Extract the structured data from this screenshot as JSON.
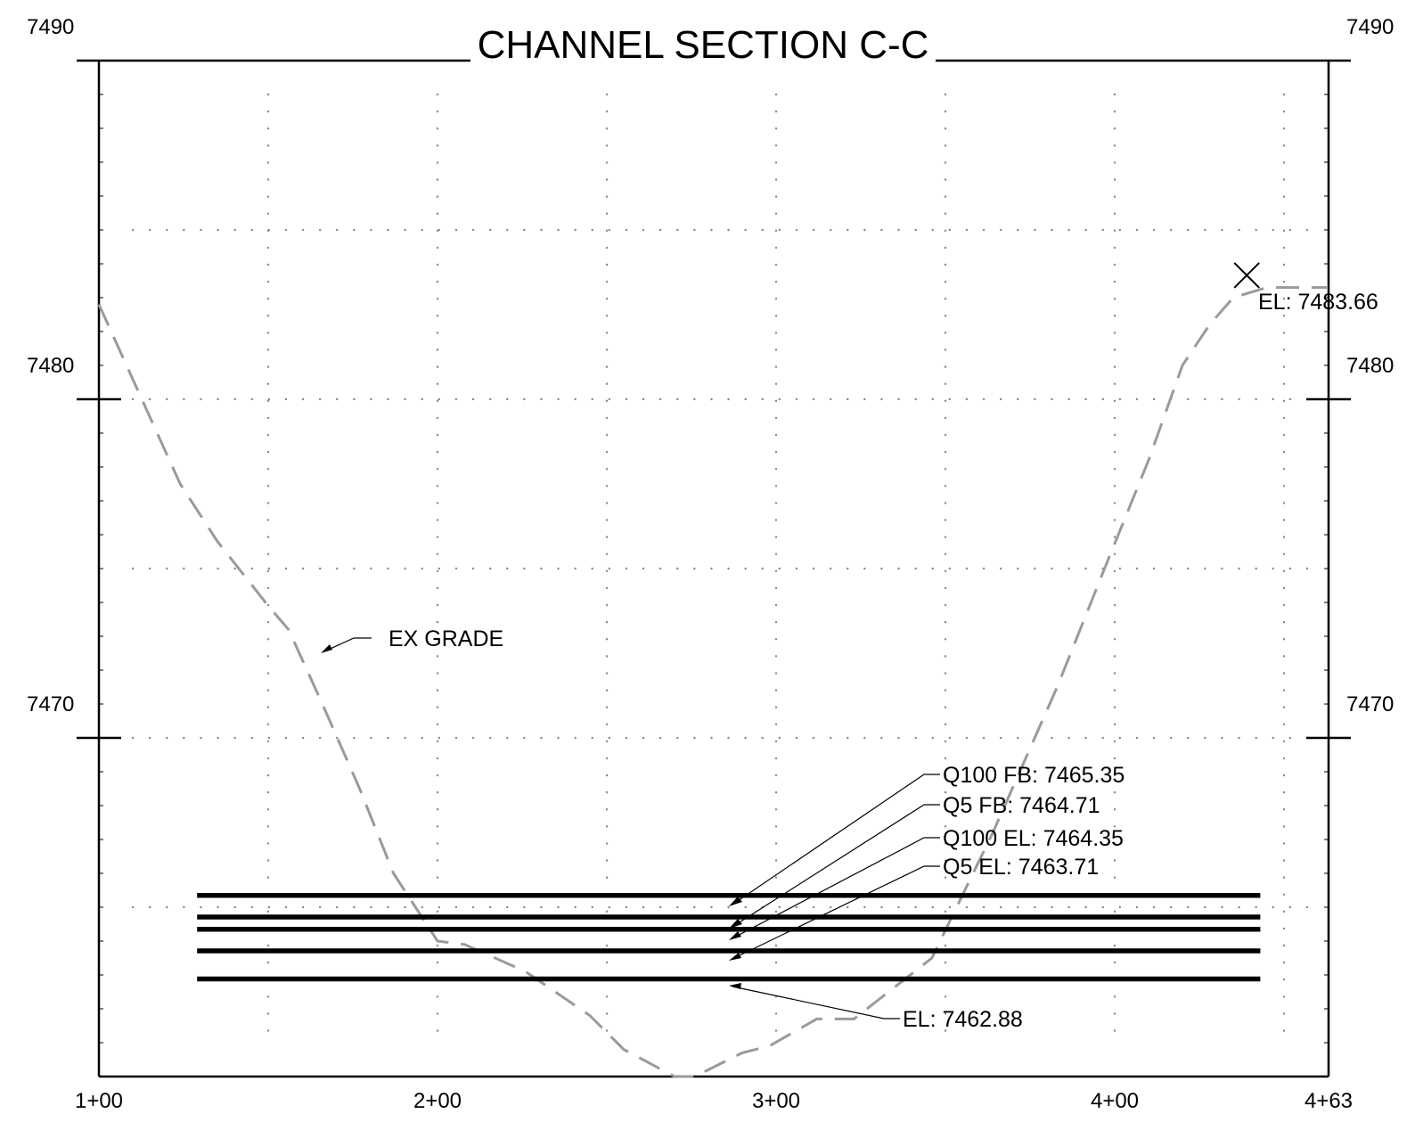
{
  "title": "CHANNEL SECTION C-C",
  "elevation_labels": {
    "top_left": "7490",
    "top_right": "7490",
    "mid_left": "7480",
    "mid_right": "7480",
    "low_left": "7470",
    "low_right": "7470"
  },
  "station_labels": [
    "1+00",
    "2+00",
    "3+00",
    "4+00",
    "4+63"
  ],
  "annotations": {
    "ex_grade": "EX GRADE",
    "crest_el": "EL: 7483.66",
    "q100_fb": "Q100 FB: 7465.35",
    "q5_fb": "Q5 FB: 7464.71",
    "q100_el": "Q100 EL: 7464.35",
    "q5_el": "Q5 EL: 7463.71",
    "invert_el": "EL: 7462.88"
  },
  "chart_data": {
    "type": "line",
    "title": "CHANNEL SECTION C-C",
    "xlabel": "",
    "ylabel": "",
    "x_ticks": [
      100,
      200,
      300,
      400,
      463
    ],
    "x_tick_labels": [
      "1+00",
      "2+00",
      "3+00",
      "4+00",
      "4+63"
    ],
    "xlim": [
      100,
      463
    ],
    "ylim": [
      7460,
      7490
    ],
    "y_ticks": [
      7470,
      7480,
      7490
    ],
    "grid": true,
    "series": [
      {
        "name": "EX GRADE",
        "style": "dashed",
        "color": "#9a9a9a",
        "x": [
          100,
          124,
          135,
          150,
          156,
          166,
          177,
          187,
          200,
          208,
          226,
          245,
          255,
          270,
          276,
          290,
          298,
          312,
          323,
          346,
          364,
          383,
          397,
          410,
          420,
          428,
          435,
          445,
          463
        ],
        "y": [
          7482.8,
          7477.5,
          7475.8,
          7473.9,
          7473.2,
          7471.0,
          7468.5,
          7466.0,
          7464.0,
          7463.9,
          7463.1,
          7461.8,
          7460.8,
          7460.0,
          7460.0,
          7460.7,
          7460.9,
          7461.7,
          7461.7,
          7463.5,
          7467.2,
          7471.5,
          7475.0,
          7478.2,
          7481.0,
          7482.2,
          7483.0,
          7483.3,
          7483.3
        ]
      }
    ],
    "horizontal_lines": [
      {
        "name": "Q100 FB",
        "y": 7465.35,
        "x_range": [
          129,
          443
        ]
      },
      {
        "name": "Q5 FB",
        "y": 7464.71,
        "x_range": [
          129,
          443
        ]
      },
      {
        "name": "Q100 EL",
        "y": 7464.35,
        "x_range": [
          129,
          443
        ]
      },
      {
        "name": "Q5 EL",
        "y": 7463.71,
        "x_range": [
          129,
          443
        ]
      },
      {
        "name": "EL",
        "y": 7462.88,
        "x_range": [
          129,
          443
        ]
      }
    ],
    "markers": [
      {
        "type": "x",
        "x": 439,
        "y": 7483.66,
        "label": "EL: 7483.66"
      }
    ]
  }
}
